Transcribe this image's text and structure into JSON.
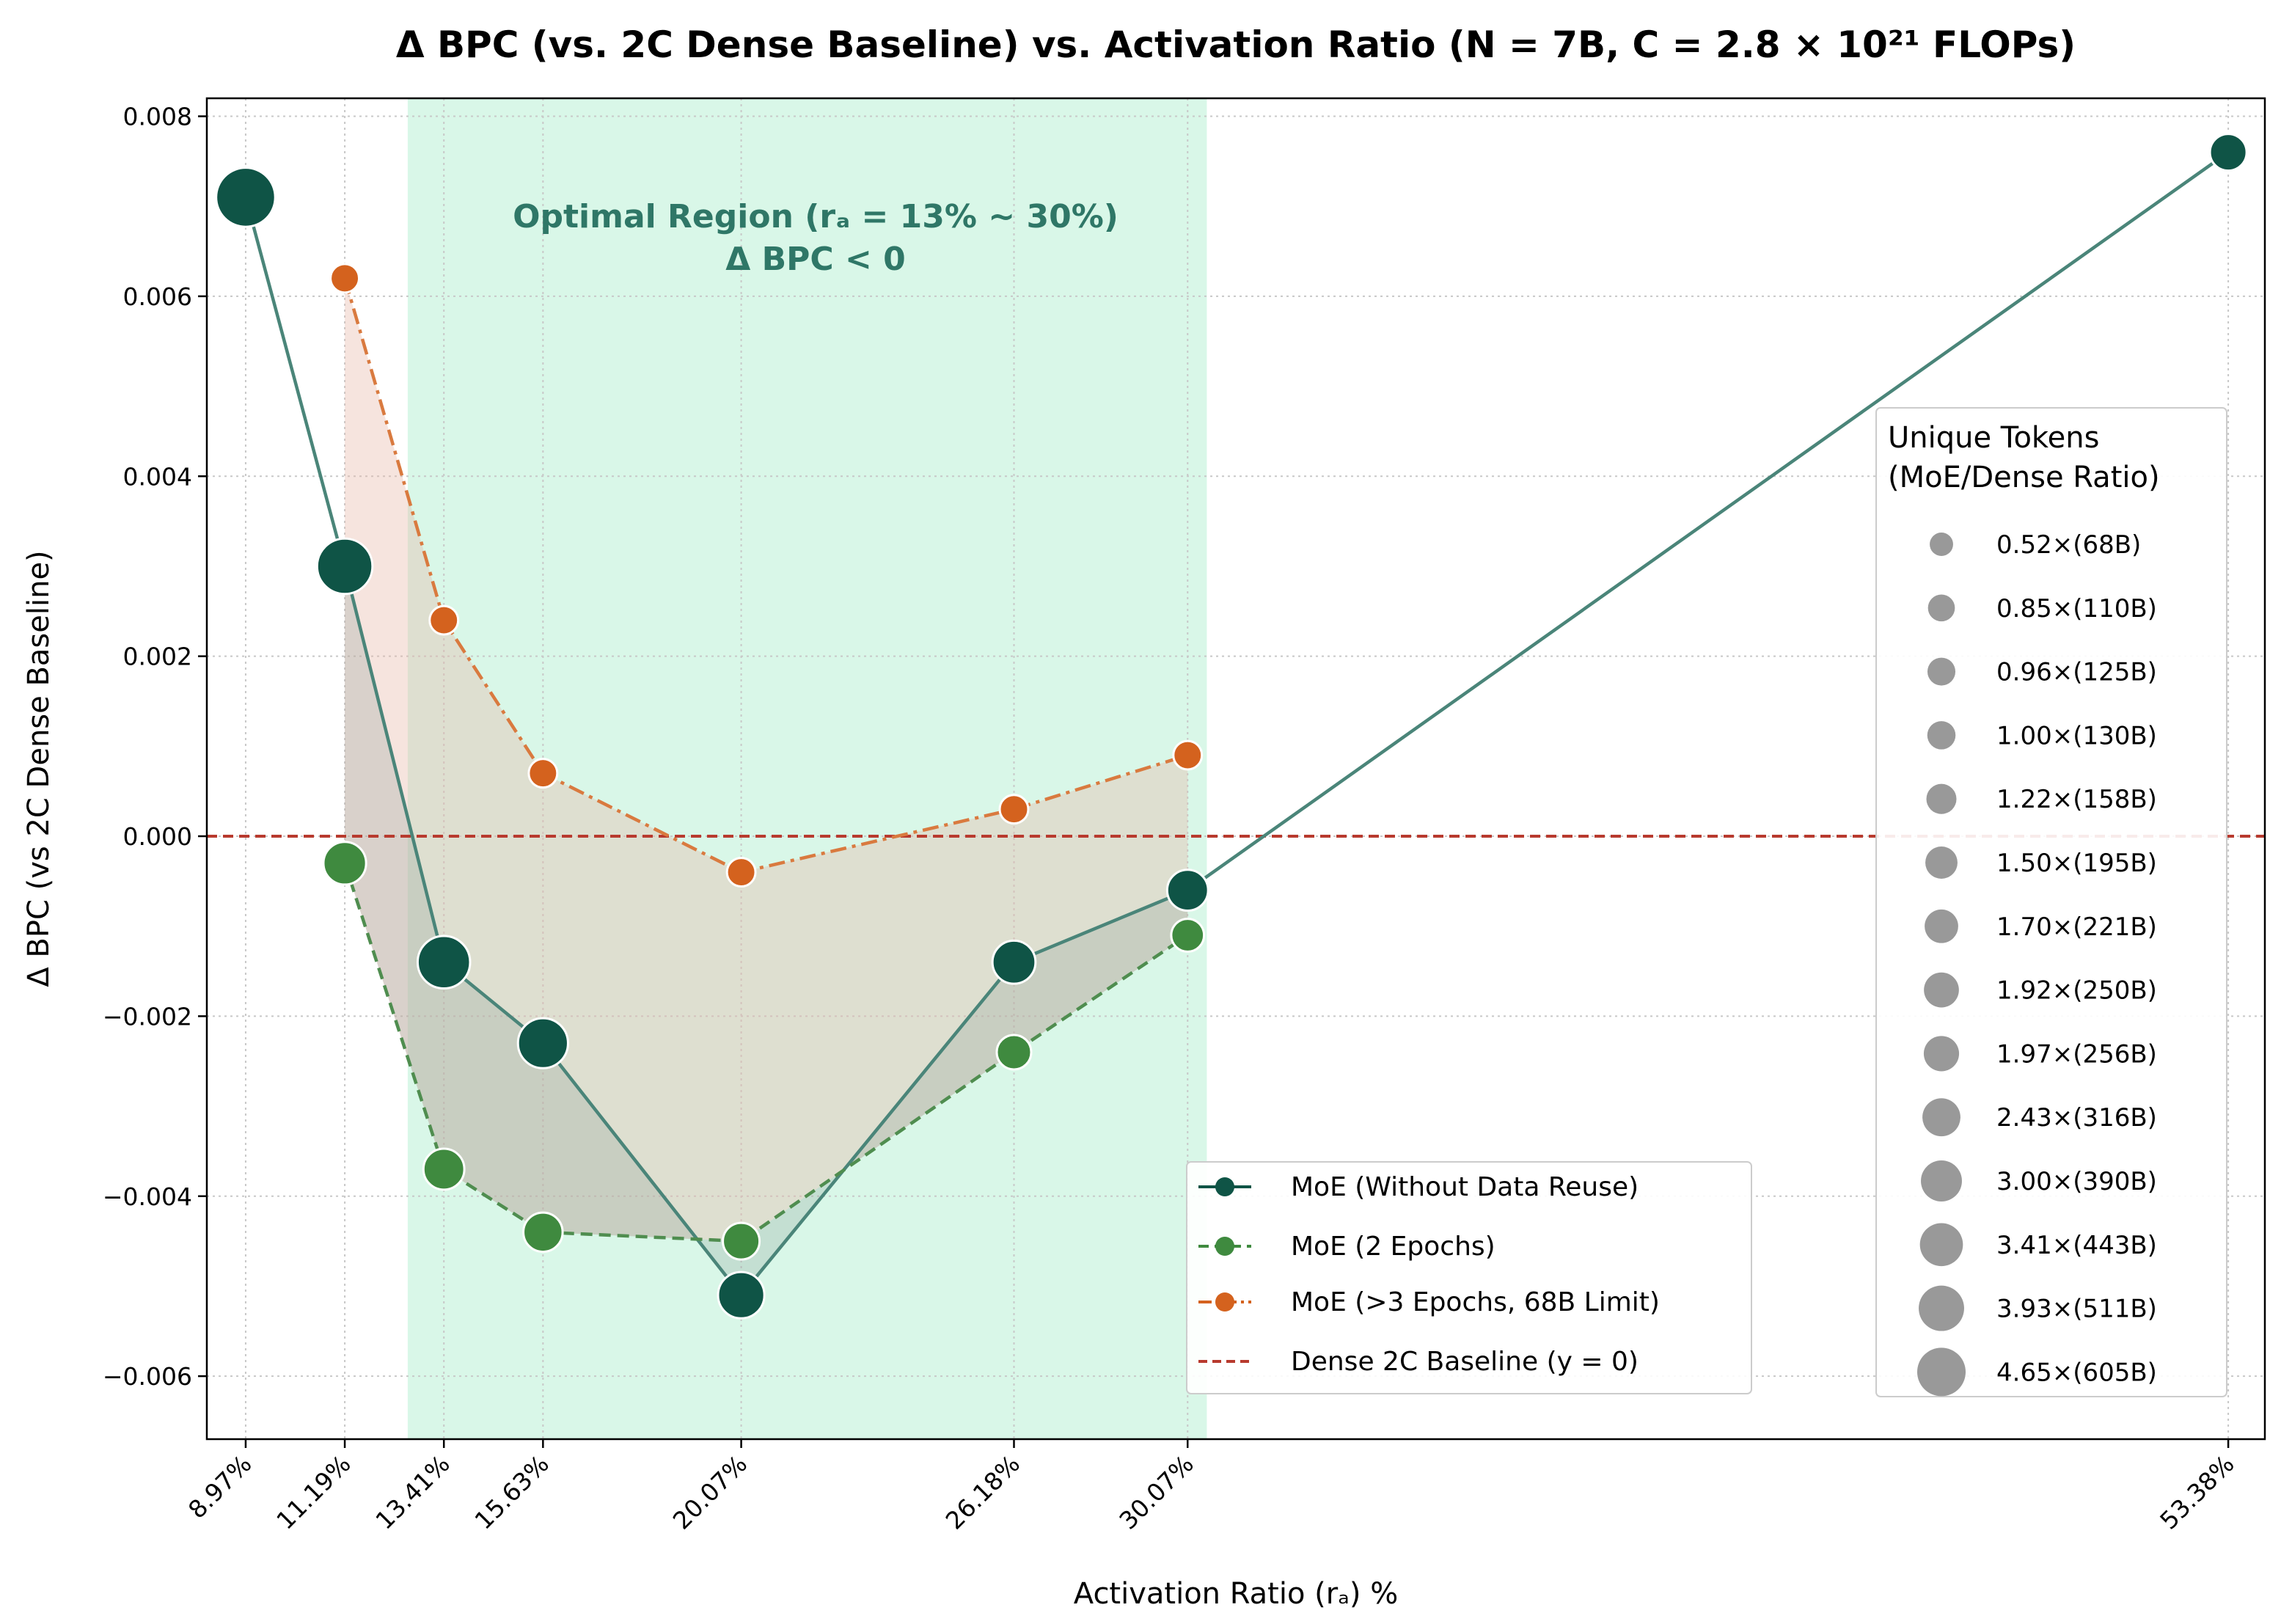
{
  "chart_data": {
    "type": "line",
    "title": "Δ BPC (vs. 2C Dense Baseline) vs. Activation Ratio (N = 7B, C = 2.8 × 10²¹ FLOPs)",
    "xlabel": "Activation Ratio (rₐ) %",
    "ylabel": "Δ BPC (vs 2C Dense Baseline)",
    "x_tick_labels": [
      "8.97%",
      "11.19%",
      "13.41%",
      "15.63%",
      "20.07%",
      "26.18%",
      "30.07%",
      "53.38%"
    ],
    "x_values": [
      8.97,
      11.19,
      13.41,
      15.63,
      20.07,
      26.18,
      30.07,
      53.38
    ],
    "xlim": [
      8.1,
      54.2
    ],
    "ylim": [
      -0.0067,
      0.0082
    ],
    "y_ticks": [
      -0.006,
      -0.004,
      -0.002,
      0.0,
      0.002,
      0.004,
      0.006,
      0.008
    ],
    "y_tick_labels": [
      "−0.006",
      "−0.004",
      "−0.002",
      "0.000",
      "0.002",
      "0.004",
      "0.006",
      "0.008"
    ],
    "grid": true,
    "series": [
      {
        "name": "MoE (Without Data Reuse)",
        "color": "#0f5446",
        "line_color": "#4a8579",
        "style": "solid",
        "x": [
          8.97,
          11.19,
          13.41,
          15.63,
          20.07,
          26.18,
          30.07,
          53.38
        ],
        "y": [
          0.0071,
          0.003,
          -0.0014,
          -0.0023,
          -0.0051,
          -0.0014,
          -0.0006,
          0.0076
        ],
        "size_ratio": [
          4.65,
          3.93,
          3.41,
          3.0,
          2.43,
          1.97,
          1.7,
          1.22
        ]
      },
      {
        "name": "MoE (2 Epochs)",
        "color": "#3f8a3f",
        "line_color": "#4f8d4f",
        "style": "dashed",
        "x": [
          11.19,
          13.41,
          15.63,
          20.07,
          26.18,
          30.07
        ],
        "y": [
          -0.0003,
          -0.0037,
          -0.0044,
          -0.0045,
          -0.0024,
          -0.0011
        ],
        "size_ratio": [
          1.92,
          1.7,
          1.5,
          1.22,
          1.0,
          0.85
        ]
      },
      {
        "name": "MoE (>3 Epochs, 68B Limit)",
        "color": "#d4621e",
        "line_color": "#d97a3f",
        "style": "dashdot",
        "x": [
          11.19,
          13.41,
          15.63,
          20.07,
          26.18,
          30.07
        ],
        "y": [
          0.0062,
          0.0024,
          0.0007,
          -0.0004,
          0.0003,
          0.0009
        ],
        "size_ratio": [
          0.52,
          0.52,
          0.52,
          0.52,
          0.52,
          0.52
        ]
      }
    ],
    "baseline": {
      "name": "Dense 2C Baseline (y = 0)",
      "y": 0,
      "color": "#b83a2e",
      "style": "dashed"
    },
    "optimal_region": {
      "x_range": [
        12.6,
        30.5
      ],
      "color": "#d9f7e8",
      "label_line1": "Optimal Region (rₐ = 13% ~ 30%)",
      "label_line2": "Δ BPC < 0"
    },
    "legend": {
      "placement": "lower-center",
      "entries": [
        "MoE (Without Data Reuse)",
        "MoE (2 Epochs)",
        "MoE (>3 Epochs, 68B Limit)",
        "Dense 2C Baseline (y = 0)"
      ]
    },
    "size_legend": {
      "placement": "right",
      "title_line1": "Unique Tokens",
      "title_line2": "(MoE/Dense Ratio)",
      "entries": [
        {
          "label": "0.52×(68B)",
          "ratio": 0.52
        },
        {
          "label": "0.85×(110B)",
          "ratio": 0.85
        },
        {
          "label": "0.96×(125B)",
          "ratio": 0.96
        },
        {
          "label": "1.00×(130B)",
          "ratio": 1.0
        },
        {
          "label": "1.22×(158B)",
          "ratio": 1.22
        },
        {
          "label": "1.50×(195B)",
          "ratio": 1.5
        },
        {
          "label": "1.70×(221B)",
          "ratio": 1.7
        },
        {
          "label": "1.92×(250B)",
          "ratio": 1.92
        },
        {
          "label": "1.97×(256B)",
          "ratio": 1.97
        },
        {
          "label": "2.43×(316B)",
          "ratio": 2.43
        },
        {
          "label": "3.00×(390B)",
          "ratio": 3.0
        },
        {
          "label": "3.41×(443B)",
          "ratio": 3.41
        },
        {
          "label": "3.93×(511B)",
          "ratio": 3.93
        },
        {
          "label": "4.65×(605B)",
          "ratio": 4.65
        }
      ]
    }
  }
}
